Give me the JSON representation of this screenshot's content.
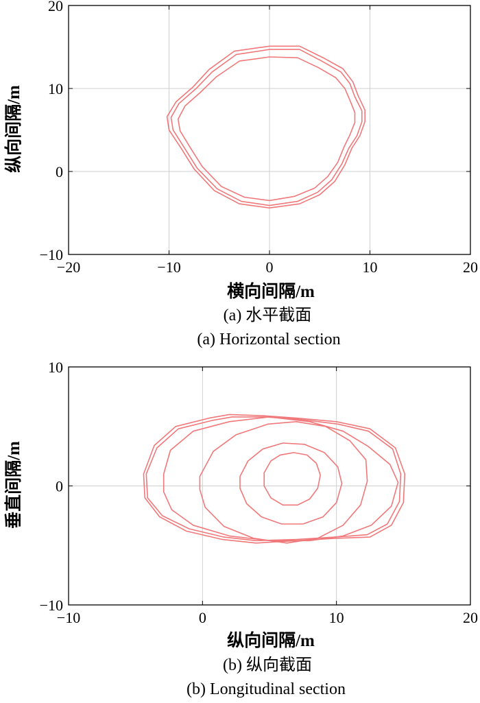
{
  "chart_data": [
    {
      "type": "line",
      "title": "",
      "xlabel": "横向间隔/m",
      "ylabel": "纵向间隔/m",
      "caption_cn": "(a) 水平截面",
      "caption_en": "(a) Horizontal section",
      "xlim": [
        -20,
        20
      ],
      "ylim": [
        -10,
        20
      ],
      "xticks": [
        -20,
        -10,
        0,
        10,
        20
      ],
      "yticks": [
        -10,
        0,
        10,
        20
      ],
      "xtick_labels": [
        "−20",
        "−10",
        "0",
        "10",
        "20"
      ],
      "ytick_labels": [
        "−10",
        "0",
        "10",
        "20"
      ],
      "grid": true,
      "line_color": "#f0787a",
      "series": [
        {
          "points": [
            [
              0,
              15.1
            ],
            [
              3,
              15.1
            ],
            [
              5.5,
              13.6
            ],
            [
              7.3,
              12.4
            ],
            [
              8.3,
              10.8
            ],
            [
              8.8,
              9.2
            ],
            [
              9.5,
              7.4
            ],
            [
              9.5,
              6
            ],
            [
              9,
              4.3
            ],
            [
              8.2,
              2.8
            ],
            [
              7.5,
              0.8
            ],
            [
              6.5,
              -1.2
            ],
            [
              5,
              -2.8
            ],
            [
              3,
              -3.9
            ],
            [
              0,
              -4.4
            ],
            [
              -3,
              -3.9
            ],
            [
              -5.5,
              -2.3
            ],
            [
              -7.5,
              0.3
            ],
            [
              -8.8,
              2.8
            ],
            [
              -10,
              5
            ],
            [
              -10.2,
              6.6
            ],
            [
              -9.3,
              8.4
            ],
            [
              -7.6,
              10.2
            ],
            [
              -6,
              12.3
            ],
            [
              -3.5,
              14.5
            ]
          ]
        },
        {
          "points": [
            [
              0,
              14.7
            ],
            [
              3,
              14.7
            ],
            [
              5.2,
              13.3
            ],
            [
              7.1,
              12
            ],
            [
              8,
              10.6
            ],
            [
              8.5,
              9
            ],
            [
              9.2,
              7.3
            ],
            [
              9.2,
              6
            ],
            [
              8.7,
              4.3
            ],
            [
              7.9,
              2.8
            ],
            [
              7.2,
              0.9
            ],
            [
              6.2,
              -1
            ],
            [
              4.8,
              -2.5
            ],
            [
              2.8,
              -3.6
            ],
            [
              0,
              -4.1
            ],
            [
              -2.8,
              -3.6
            ],
            [
              -5.2,
              -2.1
            ],
            [
              -7.2,
              0.4
            ],
            [
              -8.5,
              2.9
            ],
            [
              -9.6,
              5
            ],
            [
              -9.8,
              6.5
            ],
            [
              -9,
              8.2
            ],
            [
              -7.3,
              10
            ],
            [
              -5.7,
              12
            ],
            [
              -3.3,
              14.1
            ]
          ]
        },
        {
          "points": [
            [
              0,
              13.8
            ],
            [
              2.8,
              13.7
            ],
            [
              4.9,
              12.5
            ],
            [
              6.6,
              11.3
            ],
            [
              7.5,
              10
            ],
            [
              8,
              8.6
            ],
            [
              8.5,
              7.1
            ],
            [
              8.5,
              5.9
            ],
            [
              8,
              4.4
            ],
            [
              7.4,
              2.9
            ],
            [
              6.8,
              1.1
            ],
            [
              5.8,
              -0.6
            ],
            [
              4.5,
              -2
            ],
            [
              2.5,
              -3
            ],
            [
              0,
              -3.5
            ],
            [
              -2.5,
              -3.1
            ],
            [
              -4.8,
              -1.8
            ],
            [
              -6.7,
              0.6
            ],
            [
              -7.9,
              2.9
            ],
            [
              -8.9,
              4.9
            ],
            [
              -9.1,
              6.3
            ],
            [
              -8.4,
              7.9
            ],
            [
              -6.9,
              9.5
            ],
            [
              -5.3,
              11.4
            ],
            [
              -3,
              13.3
            ]
          ]
        }
      ]
    },
    {
      "type": "line",
      "title": "",
      "xlabel": "纵向间隔/m",
      "ylabel": "垂直间隔/m",
      "caption_cn": "(b) 纵向截面",
      "caption_en": "(b) Longitudinal section",
      "xlim": [
        -10,
        20
      ],
      "ylim": [
        -10,
        10
      ],
      "xticks": [
        -10,
        0,
        10,
        20
      ],
      "yticks": [
        -10,
        0,
        10
      ],
      "xtick_labels": [
        "−10",
        "0",
        "10",
        "20"
      ],
      "ytick_labels": [
        "−10",
        "0",
        "10"
      ],
      "grid": true,
      "line_color": "#f0787a",
      "series": [
        {
          "points": [
            [
              -4.4,
              1
            ],
            [
              -3.6,
              3.4
            ],
            [
              -2,
              5
            ],
            [
              0.5,
              5.7
            ],
            [
              2,
              6
            ],
            [
              4.5,
              5.9
            ],
            [
              7,
              5.7
            ],
            [
              10,
              5.4
            ],
            [
              12.5,
              4.8
            ],
            [
              14.4,
              3.2
            ],
            [
              15.1,
              1
            ],
            [
              15,
              -1.4
            ],
            [
              14.1,
              -3.3
            ],
            [
              12.5,
              -4.3
            ],
            [
              10,
              -4.4
            ],
            [
              7,
              -4.6
            ],
            [
              4,
              -4.8
            ],
            [
              1.5,
              -4.5
            ],
            [
              -1.2,
              -3.8
            ],
            [
              -3.2,
              -2.6
            ],
            [
              -4.3,
              -1
            ]
          ]
        },
        {
          "points": [
            [
              -4.2,
              1
            ],
            [
              -3.4,
              3.2
            ],
            [
              -1.8,
              4.8
            ],
            [
              0.7,
              5.5
            ],
            [
              2.2,
              5.8
            ],
            [
              4.7,
              5.8
            ],
            [
              7.2,
              5.6
            ],
            [
              10.1,
              5.2
            ],
            [
              12.4,
              4.6
            ],
            [
              14.2,
              3.1
            ],
            [
              14.8,
              1
            ],
            [
              14.7,
              -1.3
            ],
            [
              13.8,
              -3.2
            ],
            [
              12.3,
              -4.1
            ],
            [
              9.9,
              -4.3
            ],
            [
              7,
              -4.5
            ],
            [
              4,
              -4.6
            ],
            [
              1.6,
              -4.3
            ],
            [
              -1,
              -3.6
            ],
            [
              -3,
              -2.5
            ],
            [
              -4.1,
              -1
            ]
          ]
        },
        {
          "points": [
            [
              -2.9,
              1
            ],
            [
              -2.4,
              3
            ],
            [
              -0.7,
              4.6
            ],
            [
              2,
              5.4
            ],
            [
              5,
              5.8
            ],
            [
              8,
              5.4
            ],
            [
              10.5,
              4.6
            ],
            [
              12.4,
              3.3
            ],
            [
              14,
              1.8
            ],
            [
              14.6,
              0.3
            ],
            [
              14.1,
              -1.7
            ],
            [
              12.6,
              -3.3
            ],
            [
              10.5,
              -4.2
            ],
            [
              8,
              -4.6
            ],
            [
              5,
              -4.6
            ],
            [
              2,
              -4.2
            ],
            [
              -0.7,
              -3.3
            ],
            [
              -2.3,
              -2
            ],
            [
              -2.9,
              -0.5
            ]
          ]
        },
        {
          "points": [
            [
              -0.2,
              0.8
            ],
            [
              0.8,
              2.9
            ],
            [
              2.5,
              4.3
            ],
            [
              4.9,
              5.2
            ],
            [
              7,
              5.4
            ],
            [
              9.2,
              5
            ],
            [
              11,
              3.8
            ],
            [
              12.2,
              2.2
            ],
            [
              12.3,
              0.4
            ],
            [
              11.8,
              -1.6
            ],
            [
              10.5,
              -3.3
            ],
            [
              8.6,
              -4.4
            ],
            [
              6.3,
              -4.8
            ],
            [
              3.8,
              -4.4
            ],
            [
              1.6,
              -3.4
            ],
            [
              0.2,
              -1.8
            ],
            [
              -0.2,
              -0.3
            ]
          ]
        },
        {
          "points": [
            [
              2.8,
              0.8
            ],
            [
              3.4,
              2.1
            ],
            [
              4.5,
              3.1
            ],
            [
              6,
              3.6
            ],
            [
              7.6,
              3.5
            ],
            [
              9.1,
              2.8
            ],
            [
              10.1,
              1.6
            ],
            [
              10.4,
              0.2
            ],
            [
              10,
              -1.4
            ],
            [
              9,
              -2.6
            ],
            [
              7.5,
              -3.2
            ],
            [
              5.9,
              -3.2
            ],
            [
              4.4,
              -2.6
            ],
            [
              3.3,
              -1.5
            ],
            [
              2.8,
              -0.2
            ]
          ]
        },
        {
          "points": [
            [
              4.6,
              1.1
            ],
            [
              5.1,
              2.1
            ],
            [
              5.8,
              2.6
            ],
            [
              6.8,
              2.8
            ],
            [
              7.8,
              2.6
            ],
            [
              8.5,
              1.9
            ],
            [
              8.8,
              0.9
            ],
            [
              8.6,
              -0.2
            ],
            [
              8,
              -1.1
            ],
            [
              7.1,
              -1.6
            ],
            [
              6,
              -1.6
            ],
            [
              5.1,
              -1
            ],
            [
              4.6,
              0
            ]
          ]
        }
      ]
    }
  ]
}
